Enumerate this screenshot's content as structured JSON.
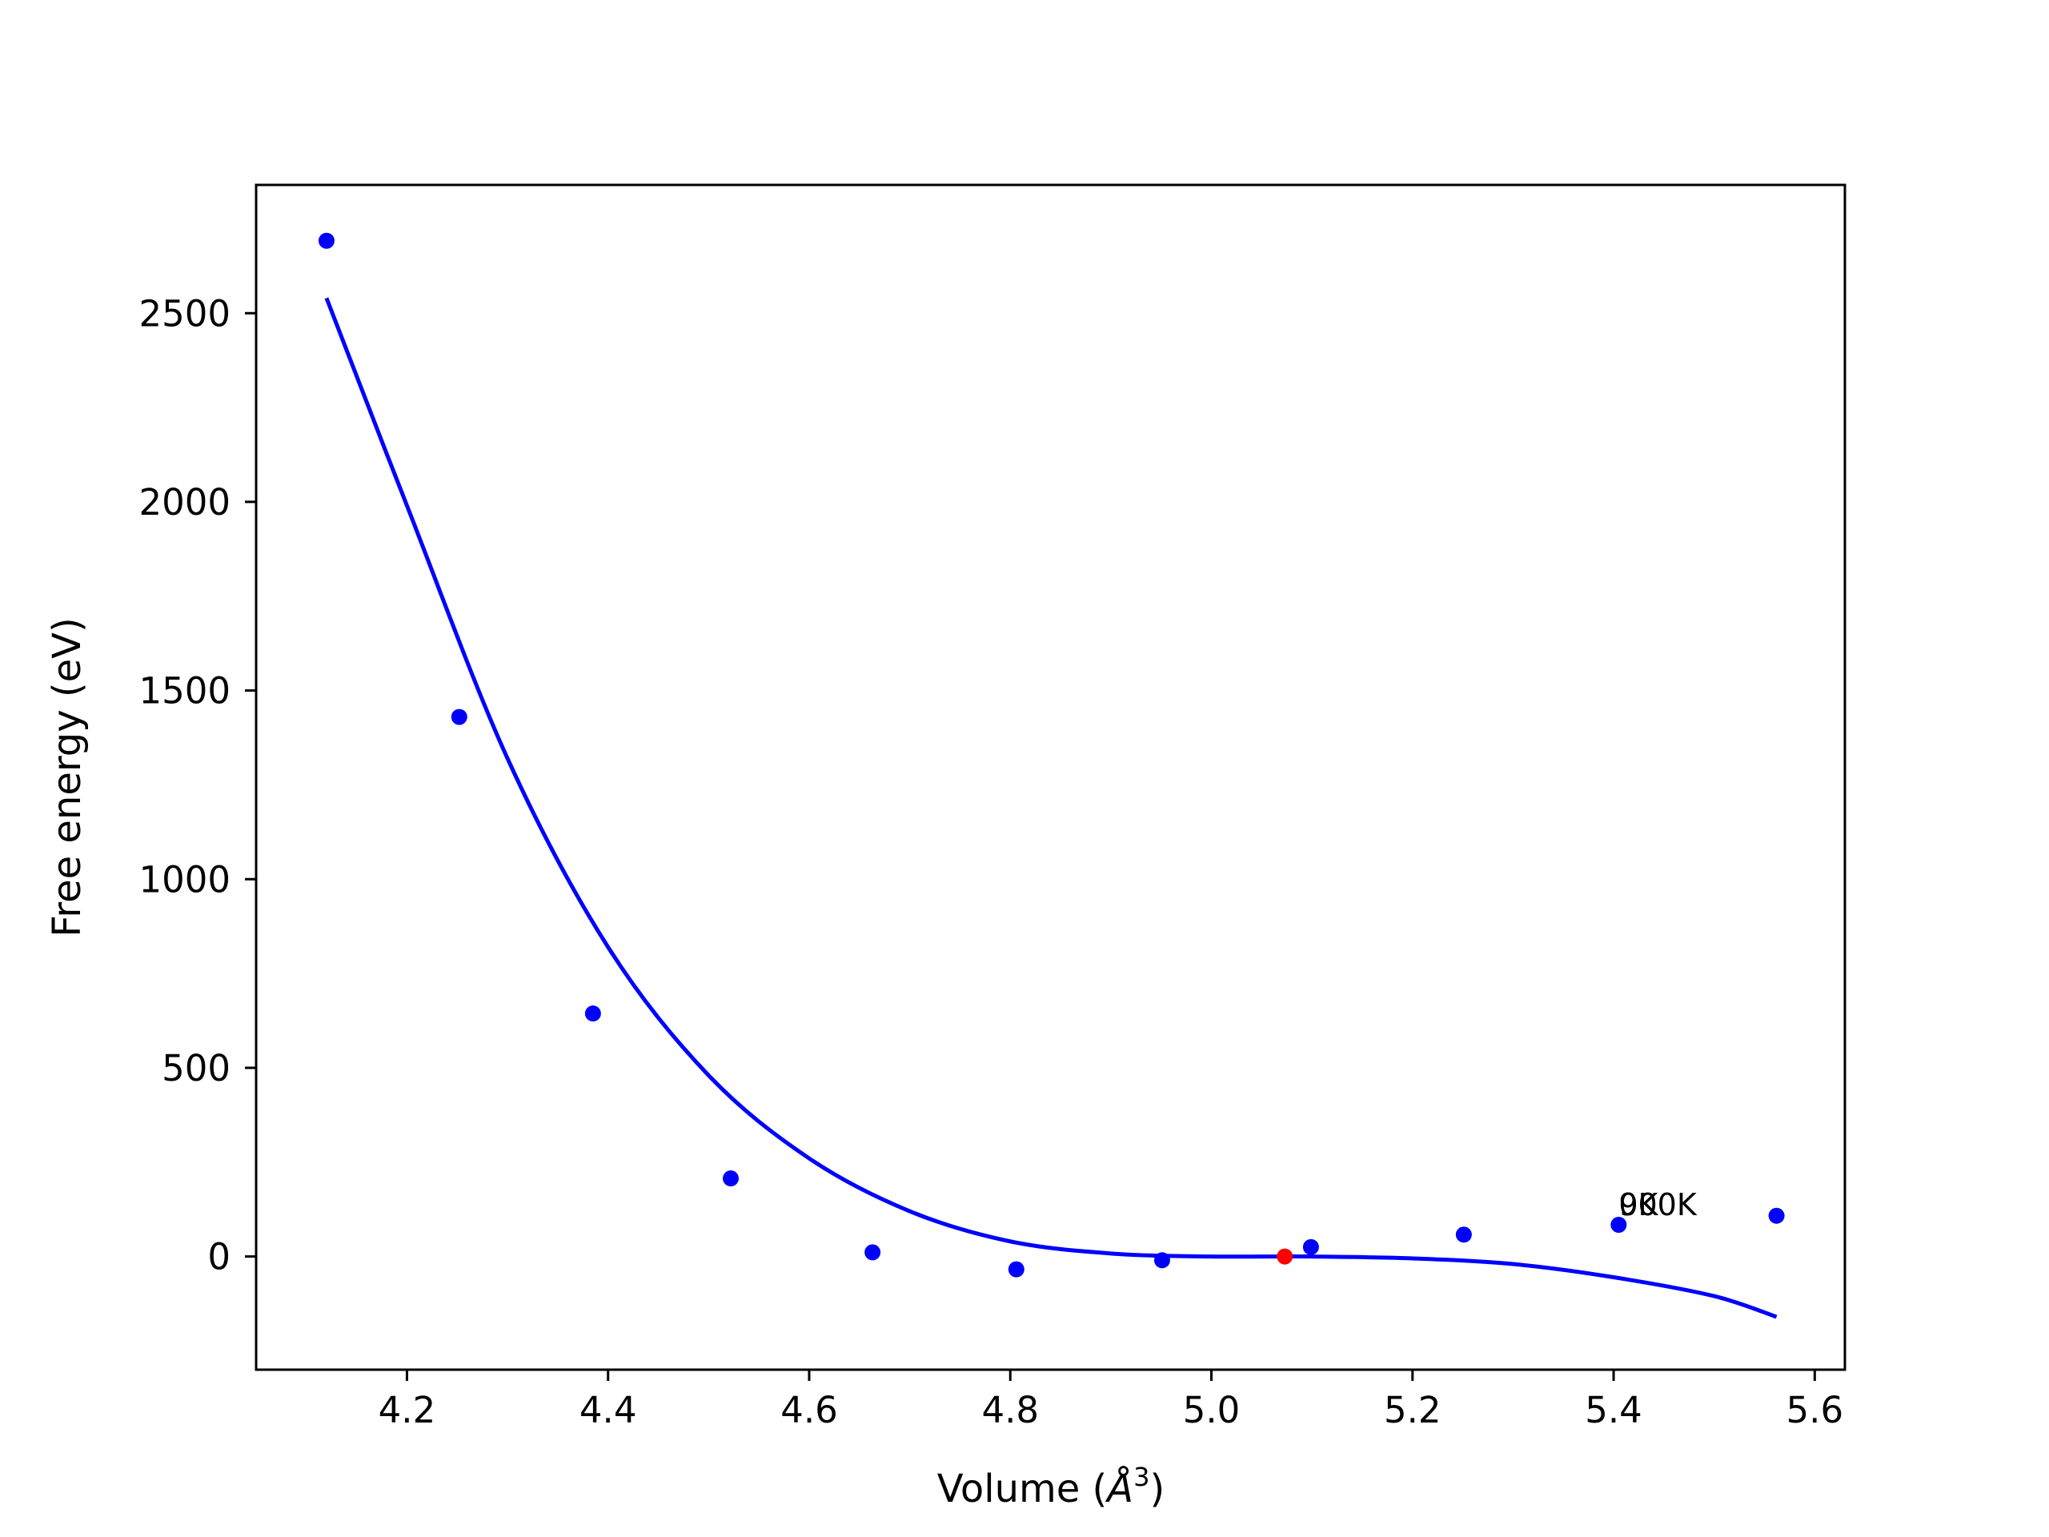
{
  "chart_data": {
    "type": "scatter",
    "xlabel": "Volume (",
    "xlabel_unit": "Å",
    "xlabel_exp": "3",
    "xlabel_end": ")",
    "ylabel": "Free energy (eV)",
    "xlim": [
      4.05,
      5.63
    ],
    "ylim": [
      -300,
      2840
    ],
    "xticks": [
      4.2,
      4.4,
      4.6,
      4.8,
      5.0,
      5.2,
      5.4,
      5.6
    ],
    "xtick_labels": [
      "4.2",
      "4.4",
      "4.6",
      "4.8",
      "5.0",
      "5.2",
      "5.4",
      "5.6"
    ],
    "yticks": [
      0,
      500,
      1000,
      1500,
      2000,
      2500
    ],
    "ytick_labels": [
      "0",
      "500",
      "1000",
      "1500",
      "2000",
      "2500"
    ],
    "grid": false,
    "series": [
      {
        "kind": "scatter",
        "color": "#0000ff",
        "x": [
          4.12,
          4.252,
          4.385,
          4.522,
          4.663,
          4.806,
          4.951,
          5.099,
          5.251,
          5.405,
          5.562
        ],
        "y": [
          2692,
          1430,
          644,
          207,
          11,
          -34,
          -10,
          25,
          58,
          84,
          108
        ]
      },
      {
        "kind": "line",
        "color": "#0000ff",
        "x": [
          4.12,
          4.2,
          4.3,
          4.4,
          4.5,
          4.6,
          4.7,
          4.8,
          4.9,
          5.0,
          5.1,
          5.2,
          5.3,
          5.4,
          5.5,
          5.562
        ],
        "y": [
          2540,
          1990,
          1320,
          820,
          480,
          260,
          120,
          40,
          8,
          0,
          0,
          -5,
          -20,
          -55,
          -105,
          -160
        ]
      },
      {
        "kind": "scatter",
        "color": "#ff0000",
        "x": [
          5.073
        ],
        "y": [
          0
        ]
      }
    ],
    "annotations": [
      {
        "text": "0K",
        "x": 5.405,
        "y": 110
      },
      {
        "text": "900K",
        "x": 5.405,
        "y": 110
      }
    ]
  }
}
